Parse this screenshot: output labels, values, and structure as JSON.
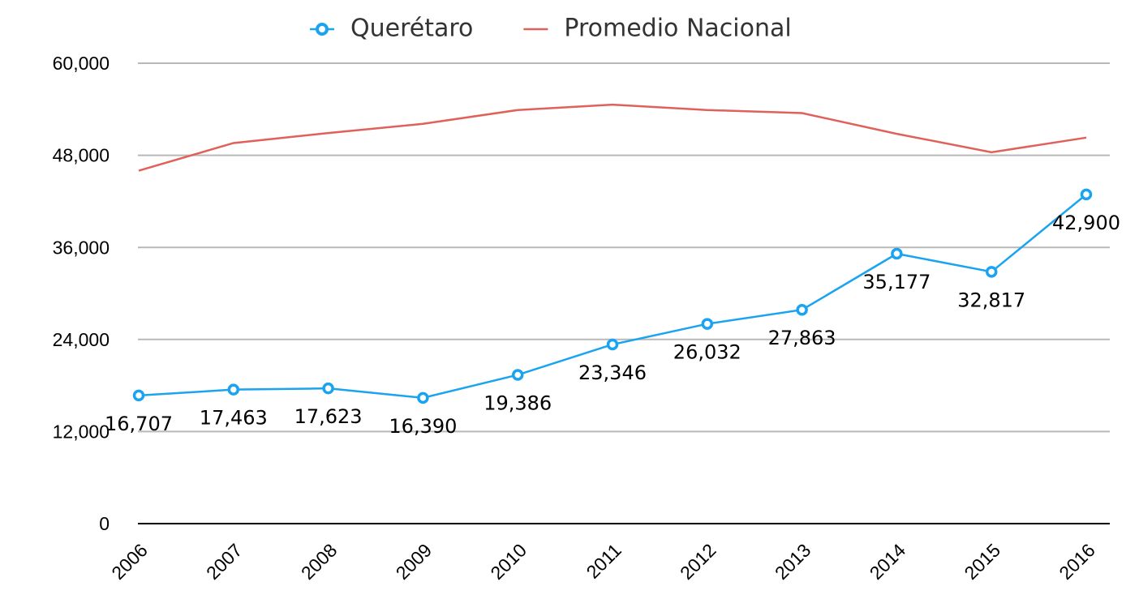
{
  "chart_data": {
    "type": "line",
    "categories": [
      "2006",
      "2007",
      "2008",
      "2009",
      "2010",
      "2011",
      "2012",
      "2013",
      "2014",
      "2015",
      "2016"
    ],
    "series": [
      {
        "name": "Querétaro",
        "color": "#1aa3f0",
        "markers": true,
        "values": [
          16707,
          17463,
          17623,
          16390,
          19386,
          23346,
          26032,
          27863,
          35177,
          32817,
          42900
        ],
        "value_labels": [
          "16,707",
          "17,463",
          "17,623",
          "16,390",
          "19,386",
          "23,346",
          "26,032",
          "27,863",
          "35,177",
          "32,817",
          "42,900"
        ]
      },
      {
        "name": "Promedio Nacional",
        "color": "#e0605a",
        "markers": false,
        "values": [
          46000,
          49600,
          50900,
          52100,
          53900,
          54600,
          53900,
          53500,
          50800,
          48400,
          50300
        ]
      }
    ],
    "ylim": [
      0,
      60000
    ],
    "yticks": [
      0,
      {
        "value": 12000,
        "label": "12,000"
      },
      {
        "value": 24000,
        "label": "24,000"
      },
      {
        "value": 36000,
        "label": "36,000"
      },
      {
        "value": 48000,
        "label": "48,000"
      },
      {
        "value": 60000,
        "label": "60,000"
      }
    ],
    "grid": true,
    "legend": "top"
  }
}
